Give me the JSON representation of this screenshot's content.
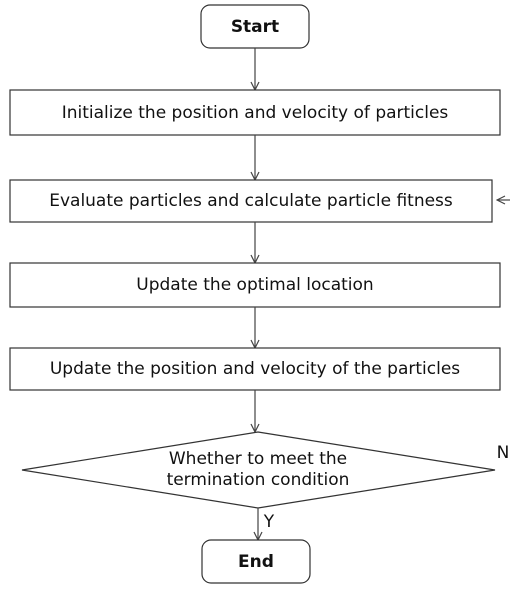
{
  "nodes": [
    {
      "label": "Start"
    },
    {
      "label": "Initialize the position and velocity of particles"
    },
    {
      "label": "Evaluate particles and calculate particle fitness"
    },
    {
      "label": "Update the optimal location"
    },
    {
      "label": "Update the position and velocity of the particles"
    },
    {
      "label_lines": [
        "Whether to meet the",
        "termination condition"
      ]
    },
    {
      "label": "End"
    }
  ],
  "edges": [
    {
      "label": "N"
    },
    {
      "label": "Y"
    }
  ]
}
